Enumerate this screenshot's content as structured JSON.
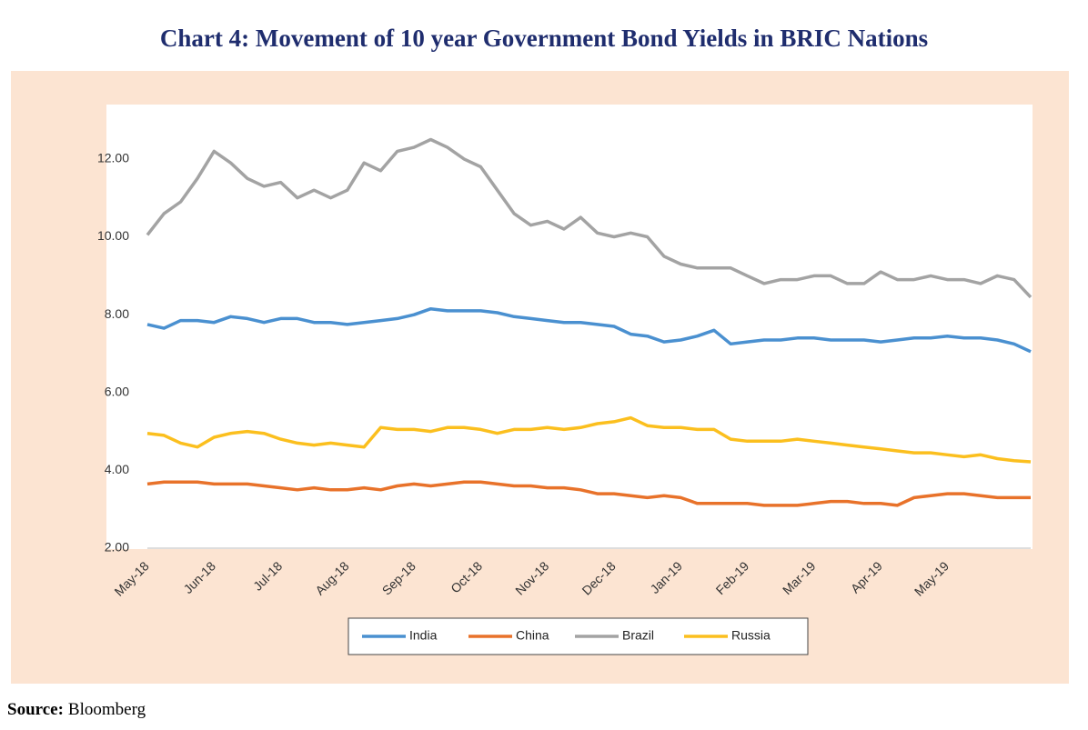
{
  "chart_data": {
    "type": "line",
    "title": "Chart 4: Movement of 10 year Government Bond Yields in BRIC Nations",
    "source": {
      "label": "Source:",
      "text": "Bloomberg"
    },
    "categories": [
      "May-18",
      null,
      null,
      null,
      "Jun-18",
      null,
      null,
      null,
      "Jul-18",
      null,
      null,
      null,
      "Aug-18",
      null,
      null,
      null,
      "Sep-18",
      null,
      null,
      null,
      "Oct-18",
      null,
      null,
      null,
      "Nov-18",
      null,
      null,
      null,
      "Dec-18",
      null,
      null,
      null,
      "Jan-19",
      null,
      null,
      null,
      "Feb-19",
      null,
      null,
      null,
      "Mar-19",
      null,
      null,
      null,
      "Apr-19",
      null,
      null,
      null,
      "May-19",
      null,
      null,
      null,
      null,
      null
    ],
    "series": [
      {
        "name": "India",
        "color": "#4a90d0",
        "values": [
          7.75,
          7.65,
          7.85,
          7.85,
          7.8,
          7.95,
          7.9,
          7.8,
          7.9,
          7.9,
          7.8,
          7.8,
          7.75,
          7.8,
          7.85,
          7.9,
          8.0,
          8.15,
          8.1,
          8.1,
          8.1,
          8.05,
          7.95,
          7.9,
          7.85,
          7.8,
          7.8,
          7.75,
          7.7,
          7.5,
          7.45,
          7.3,
          7.35,
          7.45,
          7.6,
          7.25,
          7.3,
          7.35,
          7.35,
          7.4,
          7.4,
          7.35,
          7.35,
          7.35,
          7.3,
          7.35,
          7.4,
          7.4,
          7.45,
          7.4,
          7.4,
          7.35,
          7.25,
          7.05
        ]
      },
      {
        "name": "China",
        "color": "#e8722a",
        "values": [
          3.65,
          3.7,
          3.7,
          3.7,
          3.65,
          3.65,
          3.65,
          3.6,
          3.55,
          3.5,
          3.55,
          3.5,
          3.5,
          3.55,
          3.5,
          3.6,
          3.65,
          3.6,
          3.65,
          3.7,
          3.7,
          3.65,
          3.6,
          3.6,
          3.55,
          3.55,
          3.5,
          3.4,
          3.4,
          3.35,
          3.3,
          3.35,
          3.3,
          3.15,
          3.15,
          3.15,
          3.15,
          3.1,
          3.1,
          3.1,
          3.15,
          3.2,
          3.2,
          3.15,
          3.15,
          3.1,
          3.3,
          3.35,
          3.4,
          3.4,
          3.35,
          3.3,
          3.3,
          3.3
        ]
      },
      {
        "name": "Brazil",
        "color": "#a3a3a3",
        "values": [
          10.05,
          10.6,
          10.9,
          11.5,
          12.2,
          11.9,
          11.5,
          11.3,
          11.4,
          11.0,
          11.2,
          11.0,
          11.2,
          11.9,
          11.7,
          12.2,
          12.3,
          12.5,
          12.3,
          12.0,
          11.8,
          11.2,
          10.6,
          10.3,
          10.4,
          10.2,
          10.5,
          10.1,
          10.0,
          10.1,
          10.0,
          9.5,
          9.3,
          9.2,
          9.2,
          9.2,
          9.0,
          8.8,
          8.9,
          8.9,
          9.0,
          9.0,
          8.8,
          8.8,
          9.1,
          8.9,
          8.9,
          9.0,
          8.9,
          8.9,
          8.8,
          9.0,
          8.9,
          8.45
        ]
      },
      {
        "name": "Russia",
        "color": "#fbbf1e",
        "values": [
          4.95,
          4.9,
          4.7,
          4.6,
          4.85,
          4.95,
          5.0,
          4.95,
          4.8,
          4.7,
          4.65,
          4.7,
          4.65,
          4.6,
          5.1,
          5.05,
          5.05,
          5.0,
          5.1,
          5.1,
          5.05,
          4.95,
          5.05,
          5.05,
          5.1,
          5.05,
          5.1,
          5.2,
          5.25,
          5.35,
          5.15,
          5.1,
          5.1,
          5.05,
          5.05,
          4.8,
          4.75,
          4.75,
          4.75,
          4.8,
          4.75,
          4.7,
          4.65,
          4.6,
          4.55,
          4.5,
          4.45,
          4.45,
          4.4,
          4.35,
          4.4,
          4.3,
          4.25,
          4.22
        ]
      }
    ],
    "ylim": [
      2,
      13.4
    ],
    "yticks": [
      {
        "value": 2,
        "label": "2.00"
      },
      {
        "value": 4,
        "label": "4.00"
      },
      {
        "value": 6,
        "label": "6.00"
      },
      {
        "value": 8,
        "label": "8.00"
      },
      {
        "value": 10,
        "label": "10.00"
      },
      {
        "value": 12,
        "label": "12.00"
      }
    ],
    "grid": false,
    "legend": "bottom"
  }
}
